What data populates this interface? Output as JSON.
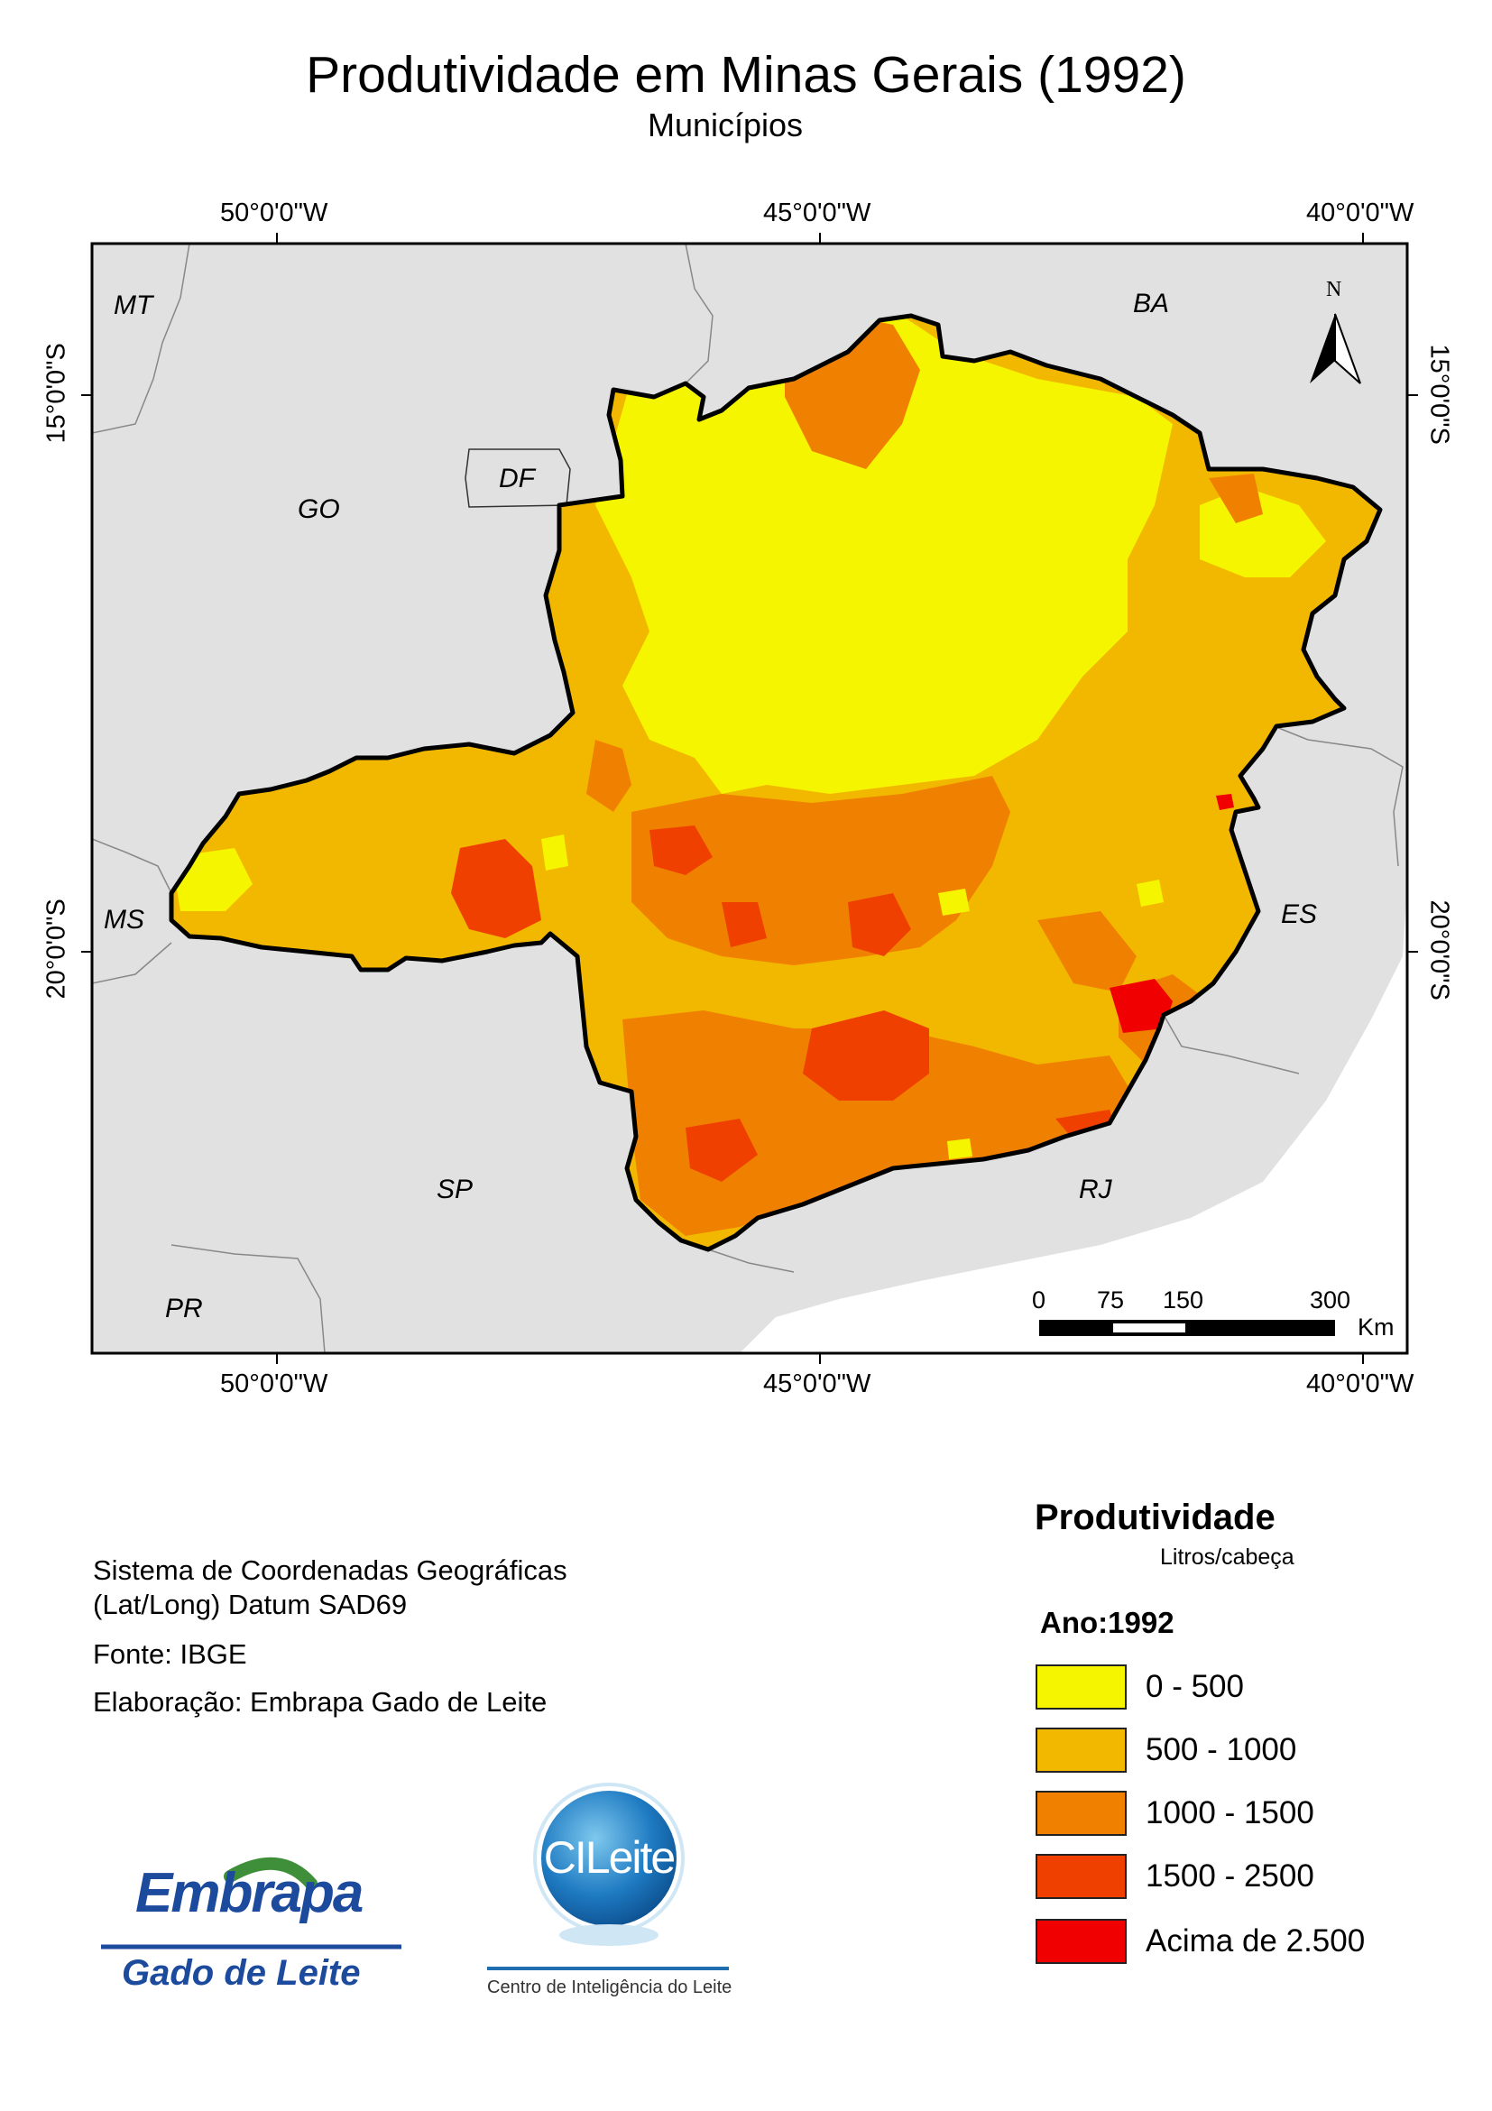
{
  "header": {
    "title": "Produtividade em Minas Gerais (1992)",
    "subtitle": "Municípios"
  },
  "map": {
    "graticule": {
      "longitudes": [
        "50°0'0\"W",
        "45°0'0\"W",
        "40°0'0\"W"
      ],
      "latitudes": [
        "15°0'0\"S",
        "20°0'0\"S"
      ]
    },
    "states": [
      "MT",
      "BA",
      "GO",
      "DF",
      "MS",
      "ES",
      "SP",
      "RJ",
      "PR"
    ],
    "north_arrow": "N",
    "scale_bar": {
      "labels": [
        "0",
        "75",
        "150",
        "300"
      ],
      "unit": "Km"
    },
    "colors": {
      "background": "#e1e1e1",
      "ocean": "#ffffff"
    }
  },
  "info": {
    "line1": "Sistema de Coordenadas Geográficas",
    "line2": "(Lat/Long) Datum SAD69",
    "source": "Fonte: IBGE",
    "credit": "Elaboração: Embrapa Gado de Leite"
  },
  "legend": {
    "title": "Produtividade",
    "unit": "Litros/cabeça",
    "year": "Ano:1992",
    "classes": [
      {
        "label": "0 - 500",
        "color": "#f5f500"
      },
      {
        "label": "500 - 1000",
        "color": "#f2b800"
      },
      {
        "label": "1000 - 1500",
        "color": "#f08000"
      },
      {
        "label": "1500 - 2500",
        "color": "#f04000"
      },
      {
        "label": "Acima de 2.500",
        "color": "#f00000"
      }
    ]
  },
  "logos": {
    "embrapa_top": "Embrapa",
    "embrapa_bottom": "Gado de Leite",
    "cileite": "CILeite",
    "cileite_caption": "Centro de Inteligência do Leite"
  }
}
